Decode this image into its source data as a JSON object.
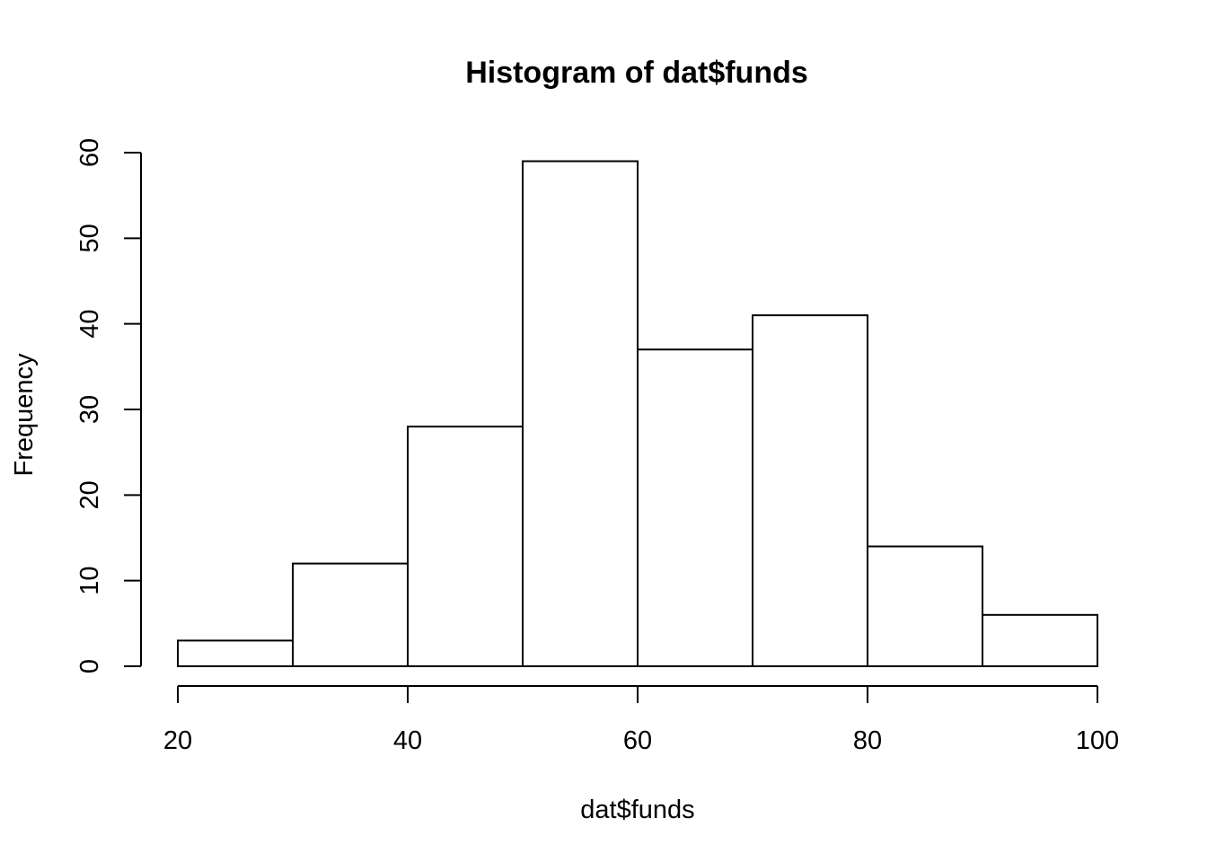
{
  "chart_data": {
    "type": "bar",
    "title": "Histogram of dat$funds",
    "xlabel": "dat$funds",
    "ylabel": "Frequency",
    "bins": [
      {
        "start": 20,
        "end": 30,
        "count": 3
      },
      {
        "start": 30,
        "end": 40,
        "count": 12
      },
      {
        "start": 40,
        "end": 50,
        "count": 28
      },
      {
        "start": 50,
        "end": 60,
        "count": 59
      },
      {
        "start": 60,
        "end": 70,
        "count": 37
      },
      {
        "start": 70,
        "end": 80,
        "count": 41
      },
      {
        "start": 80,
        "end": 90,
        "count": 14
      },
      {
        "start": 90,
        "end": 100,
        "count": 6
      }
    ],
    "xlim": [
      20,
      100
    ],
    "ylim": [
      0,
      60
    ],
    "x_ticks": [
      20,
      40,
      60,
      80,
      100
    ],
    "y_ticks": [
      0,
      10,
      20,
      30,
      40,
      50,
      60
    ],
    "bar_fill": "#ffffff",
    "bar_stroke": "#000000",
    "grid": false,
    "legend": "none"
  }
}
